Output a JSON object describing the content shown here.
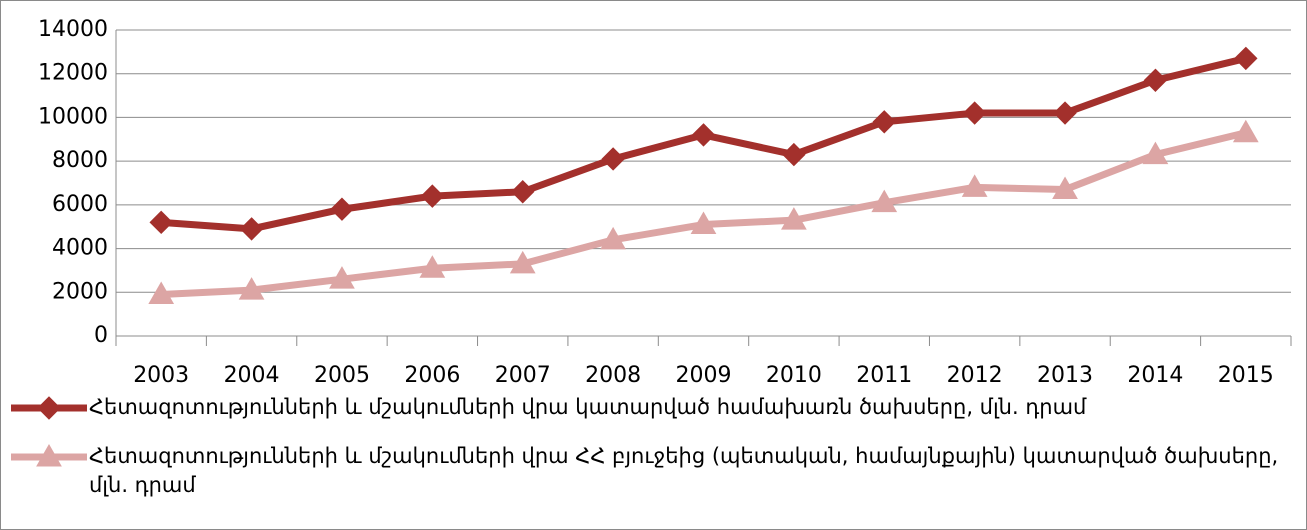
{
  "chart_data": {
    "type": "line",
    "categories": [
      "2003",
      "2004",
      "2005",
      "2006",
      "2007",
      "2008",
      "2009",
      "2010",
      "2011",
      "2012",
      "2013",
      "2014",
      "2015"
    ],
    "series": [
      {
        "name": "Հետազոտությունների և մշակումների վրա կատարված համախառն ծախսերը, մլն. դրամ",
        "color": "#a3302c",
        "marker": "diamond",
        "values": [
          5200,
          4900,
          5800,
          6400,
          6600,
          8100,
          9200,
          8300,
          9800,
          10200,
          10200,
          11700,
          12700
        ]
      },
      {
        "name": "Հետազոտությունների և մշակումների վրա ՀՀ բյուջեից (պետական, համայնքային) կատարված ծախսերը, մլն. դրամ",
        "color": "#dca5a4",
        "marker": "triangle",
        "values": [
          1900,
          2100,
          2600,
          3100,
          3300,
          4400,
          5100,
          5300,
          6100,
          6800,
          6700,
          8300,
          9300
        ]
      }
    ],
    "ylim": [
      0,
      14000
    ],
    "yticks": [
      0,
      2000,
      4000,
      6000,
      8000,
      10000,
      12000,
      14000
    ],
    "grid": true,
    "legend": "bottom"
  }
}
